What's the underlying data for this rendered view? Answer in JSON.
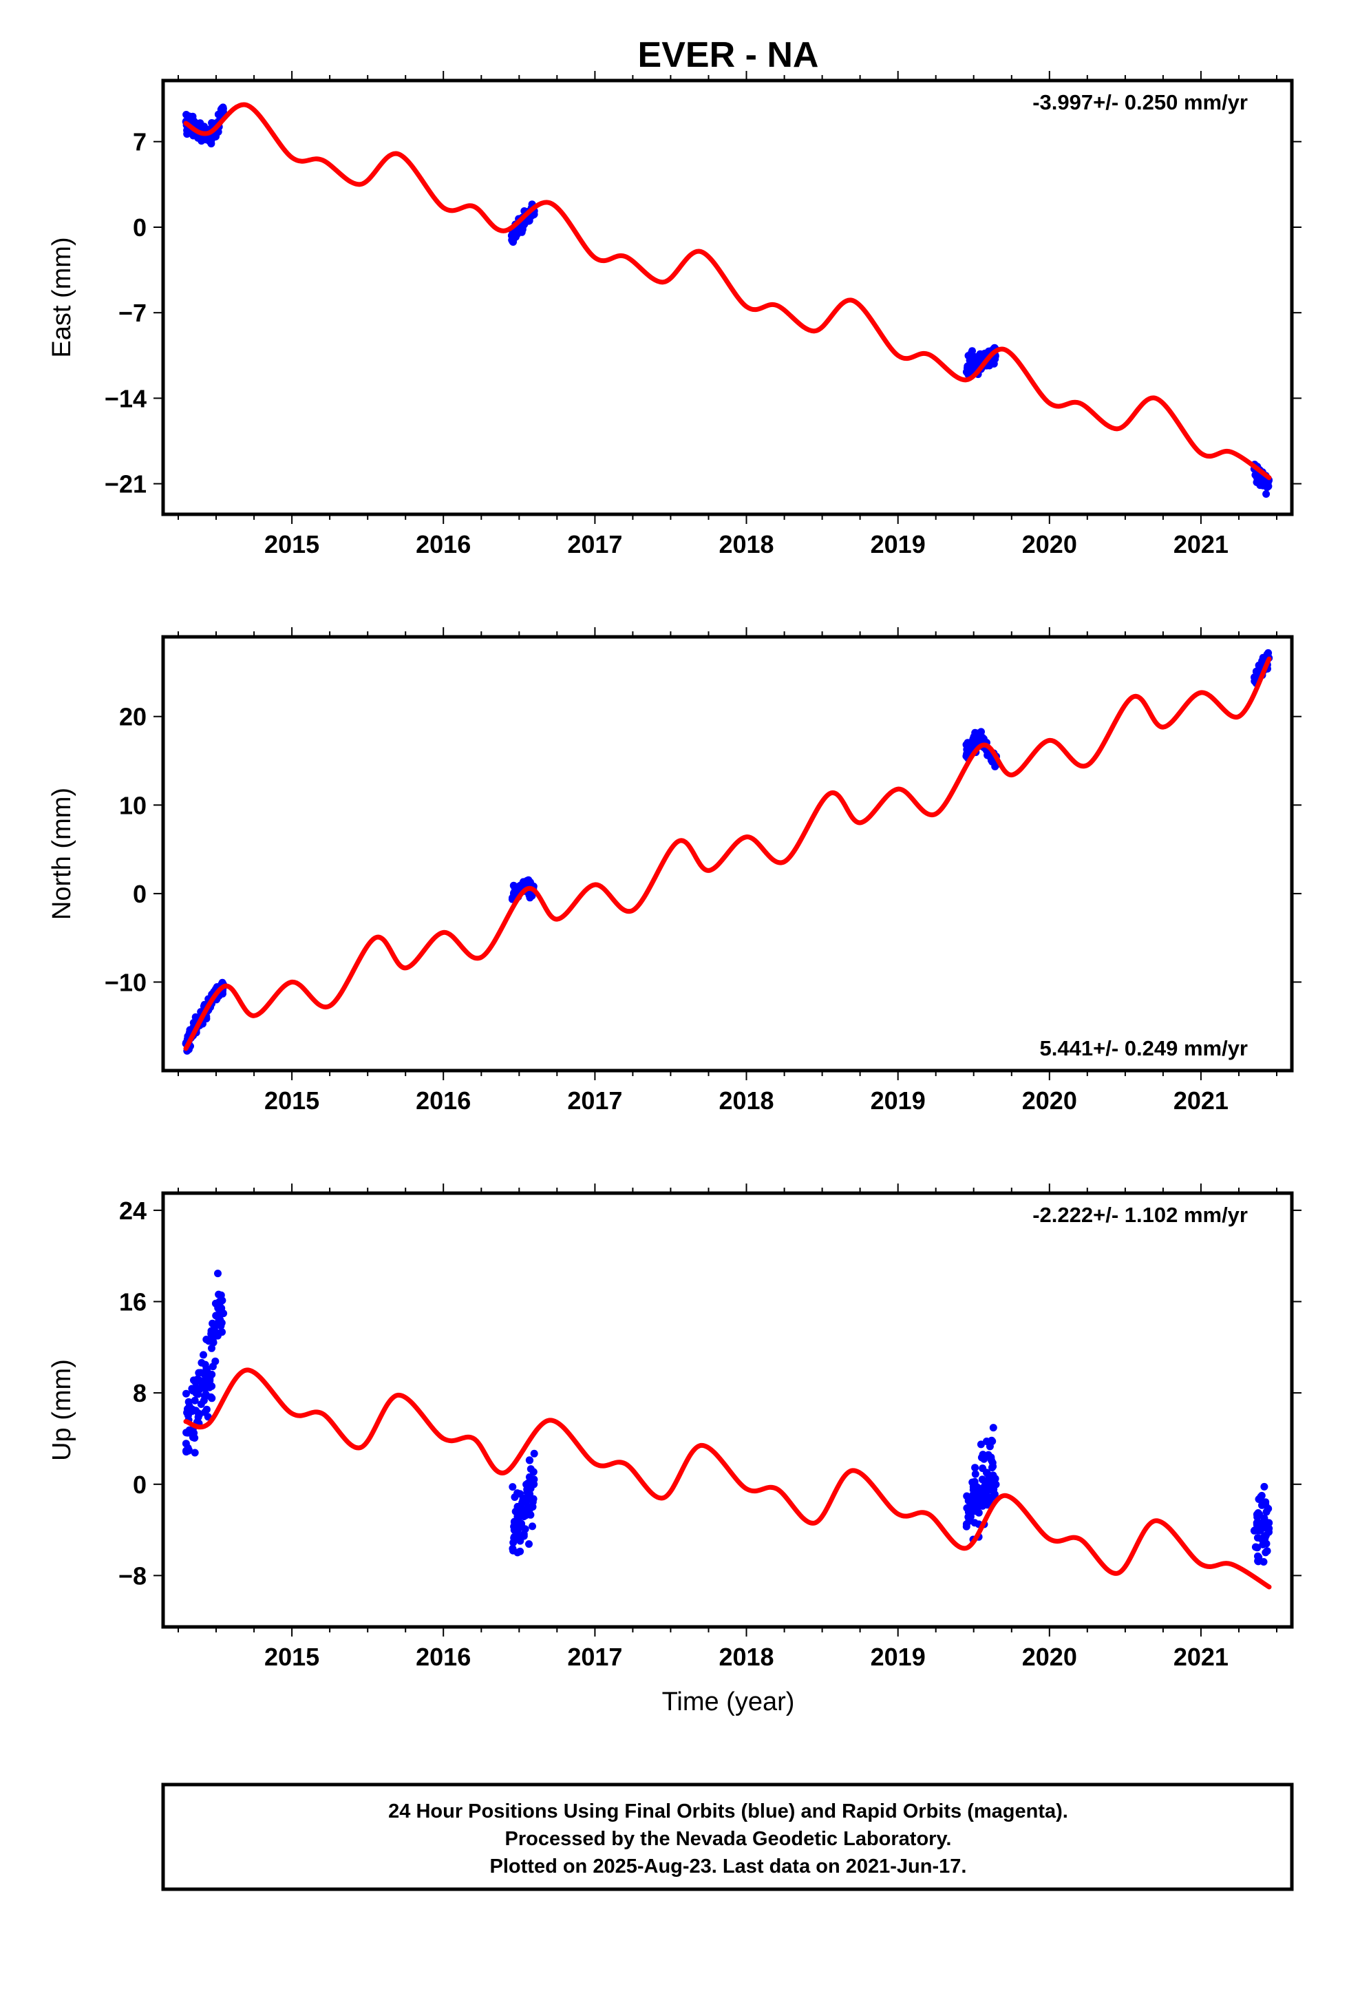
{
  "chart_data": {
    "type": "scatter",
    "title": "EVER - NA",
    "xlabel": "Time (year)",
    "x_ticks": [
      2015,
      2016,
      2017,
      2018,
      2019,
      2020,
      2021
    ],
    "xlim": [
      2014.15,
      2021.6
    ],
    "colors": {
      "data": "#0000ff",
      "model": "#ff0000",
      "frame": "#000000"
    },
    "panels": [
      {
        "id": "east",
        "ylabel": "East (mm)",
        "rate_text": "-3.997+/- 0.250 mm/yr",
        "rate_position": "top-right",
        "ylim": [
          -23.5,
          12
        ],
        "y_ticks": [
          7,
          0,
          -7,
          -14,
          -21
        ],
        "y_tick_labels": [
          "7",
          "0",
          "−7",
          "−14",
          "−21"
        ],
        "series": [
          {
            "name": "",
            "kind": "points",
            "noise": 0.8,
            "segments": [
              {
                "x": [
                  2014.3,
                  2014.35,
                  2014.4,
                  2014.45,
                  2014.5,
                  2014.55
                ],
                "y": [
                  8.5,
                  8.2,
                  7.8,
                  7.6,
                  7.9,
                  9.5
                ]
              },
              {
                "x": [
                  2016.45,
                  2016.5,
                  2016.55,
                  2016.6
                ],
                "y": [
                  -0.8,
                  0.0,
                  0.8,
                  1.5
                ]
              },
              {
                "x": [
                  2019.45,
                  2019.5,
                  2019.55,
                  2019.6,
                  2019.65
                ],
                "y": [
                  -11.5,
                  -11.2,
                  -11.0,
                  -10.5,
                  -10.2
                ]
              },
              {
                "x": [
                  2021.35,
                  2021.4,
                  2021.45
                ],
                "y": [
                  -20.0,
                  -20.5,
                  -21.0
                ]
              }
            ]
          },
          {
            "name": "",
            "kind": "line",
            "x": [
              2014.3,
              2014.45,
              2014.7,
              2015.0,
              2015.2,
              2015.45,
              2015.7,
              2016.0,
              2016.2,
              2016.4,
              2016.7,
              2017.0,
              2017.2,
              2017.45,
              2017.7,
              2018.0,
              2018.2,
              2018.45,
              2018.7,
              2019.0,
              2019.2,
              2019.45,
              2019.7,
              2020.0,
              2020.2,
              2020.45,
              2020.7,
              2021.0,
              2021.2,
              2021.45
            ],
            "y": [
              8.5,
              7.7,
              10.0,
              5.7,
              5.5,
              3.5,
              6.0,
              1.6,
              1.7,
              -0.3,
              2.0,
              -2.5,
              -2.4,
              -4.5,
              -2.0,
              -6.5,
              -6.4,
              -8.5,
              -6.0,
              -10.5,
              -10.4,
              -12.5,
              -10.0,
              -14.4,
              -14.4,
              -16.5,
              -14.0,
              -18.5,
              -18.4,
              -20.5
            ]
          }
        ]
      },
      {
        "id": "north",
        "ylabel": "North (mm)",
        "rate_text": "5.441+/- 0.249 mm/yr",
        "rate_position": "bottom-right",
        "ylim": [
          -20,
          29
        ],
        "y_ticks": [
          20,
          10,
          0,
          -10
        ],
        "y_tick_labels": [
          "20",
          "10",
          "0",
          "−10"
        ],
        "series": [
          {
            "name": "",
            "kind": "points",
            "noise": 0.9,
            "segments": [
              {
                "x": [
                  2014.3,
                  2014.35,
                  2014.4,
                  2014.45,
                  2014.5,
                  2014.55
                ],
                "y": [
                  -17.5,
                  -15.5,
                  -14.0,
                  -12.5,
                  -11.5,
                  -10.5
                ]
              },
              {
                "x": [
                  2016.45,
                  2016.5,
                  2016.55,
                  2016.6
                ],
                "y": [
                  -0.5,
                  0.5,
                  1.0,
                  0.0
                ]
              },
              {
                "x": [
                  2019.45,
                  2019.5,
                  2019.55,
                  2019.6,
                  2019.65
                ],
                "y": [
                  16.0,
                  17.0,
                  17.5,
                  16.0,
                  14.5
                ]
              },
              {
                "x": [
                  2021.35,
                  2021.4,
                  2021.45
                ],
                "y": [
                  24.0,
                  25.5,
                  26.5
                ]
              }
            ]
          },
          {
            "name": "",
            "kind": "line",
            "x": [
              2014.3,
              2014.55,
              2014.75,
              2015.0,
              2015.25,
              2015.55,
              2015.75,
              2016.0,
              2016.25,
              2016.55,
              2016.75,
              2017.0,
              2017.25,
              2017.55,
              2017.75,
              2018.0,
              2018.25,
              2018.55,
              2018.75,
              2019.0,
              2019.25,
              2019.55,
              2019.75,
              2020.0,
              2020.25,
              2020.55,
              2020.75,
              2021.0,
              2021.25,
              2021.45
            ],
            "y": [
              -17.5,
              -10.5,
              -13.8,
              -10.0,
              -12.7,
              -5.0,
              -8.4,
              -4.4,
              -7.2,
              0.5,
              -2.9,
              1.0,
              -1.9,
              5.9,
              2.6,
              6.4,
              3.6,
              11.3,
              8.0,
              11.8,
              9.0,
              16.7,
              13.4,
              17.3,
              14.5,
              22.2,
              18.8,
              22.7,
              20.0,
              26.5
            ]
          }
        ]
      },
      {
        "id": "up",
        "ylabel": "Up (mm)",
        "rate_text": "-2.222+/- 1.102 mm/yr",
        "rate_position": "top-right",
        "ylim": [
          -12.5,
          25.5
        ],
        "y_ticks": [
          24,
          16,
          8,
          0,
          -8
        ],
        "y_tick_labels": [
          "24",
          "16",
          "8",
          "0",
          "−8"
        ],
        "series": [
          {
            "name": "",
            "kind": "points",
            "noise": 3.0,
            "segments": [
              {
                "x": [
                  2014.3,
                  2014.35,
                  2014.4,
                  2014.45,
                  2014.5,
                  2014.55
                ],
                "y": [
                  4.5,
                  6.0,
                  8.0,
                  9.0,
                  14.0,
                  17.0
                ]
              },
              {
                "x": [
                  2016.45,
                  2016.5,
                  2016.55,
                  2016.6
                ],
                "y": [
                  -4.0,
                  -3.0,
                  -2.0,
                  0.0
                ]
              },
              {
                "x": [
                  2019.45,
                  2019.5,
                  2019.55,
                  2019.6,
                  2019.65
                ],
                "y": [
                  -3.0,
                  -1.5,
                  0.0,
                  0.5,
                  1.5
                ]
              },
              {
                "x": [
                  2021.35,
                  2021.4,
                  2021.45
                ],
                "y": [
                  -5.0,
                  -4.0,
                  -3.0
                ]
              }
            ]
          },
          {
            "name": "",
            "kind": "line",
            "x": [
              2014.3,
              2014.45,
              2014.7,
              2015.0,
              2015.2,
              2015.45,
              2015.7,
              2016.0,
              2016.2,
              2016.4,
              2016.7,
              2017.0,
              2017.2,
              2017.45,
              2017.7,
              2018.0,
              2018.2,
              2018.45,
              2018.7,
              2019.0,
              2019.2,
              2019.45,
              2019.7,
              2020.0,
              2020.2,
              2020.45,
              2020.7,
              2021.0,
              2021.2,
              2021.45
            ],
            "y": [
              5.5,
              5.3,
              10.0,
              6.2,
              6.2,
              3.2,
              7.8,
              4.0,
              4.0,
              1.0,
              5.6,
              1.8,
              1.8,
              -1.2,
              3.4,
              -0.4,
              -0.4,
              -3.4,
              1.2,
              -2.6,
              -2.6,
              -5.6,
              -1.0,
              -4.8,
              -4.8,
              -7.8,
              -3.2,
              -7.0,
              -7.0,
              -9.0
            ]
          }
        ]
      }
    ],
    "footer_lines": [
      "24 Hour Positions Using Final Orbits (blue) and Rapid Orbits (magenta).",
      "Processed by the Nevada Geodetic Laboratory.",
      "Plotted on 2025-Aug-23. Last data on 2021-Jun-17."
    ]
  }
}
